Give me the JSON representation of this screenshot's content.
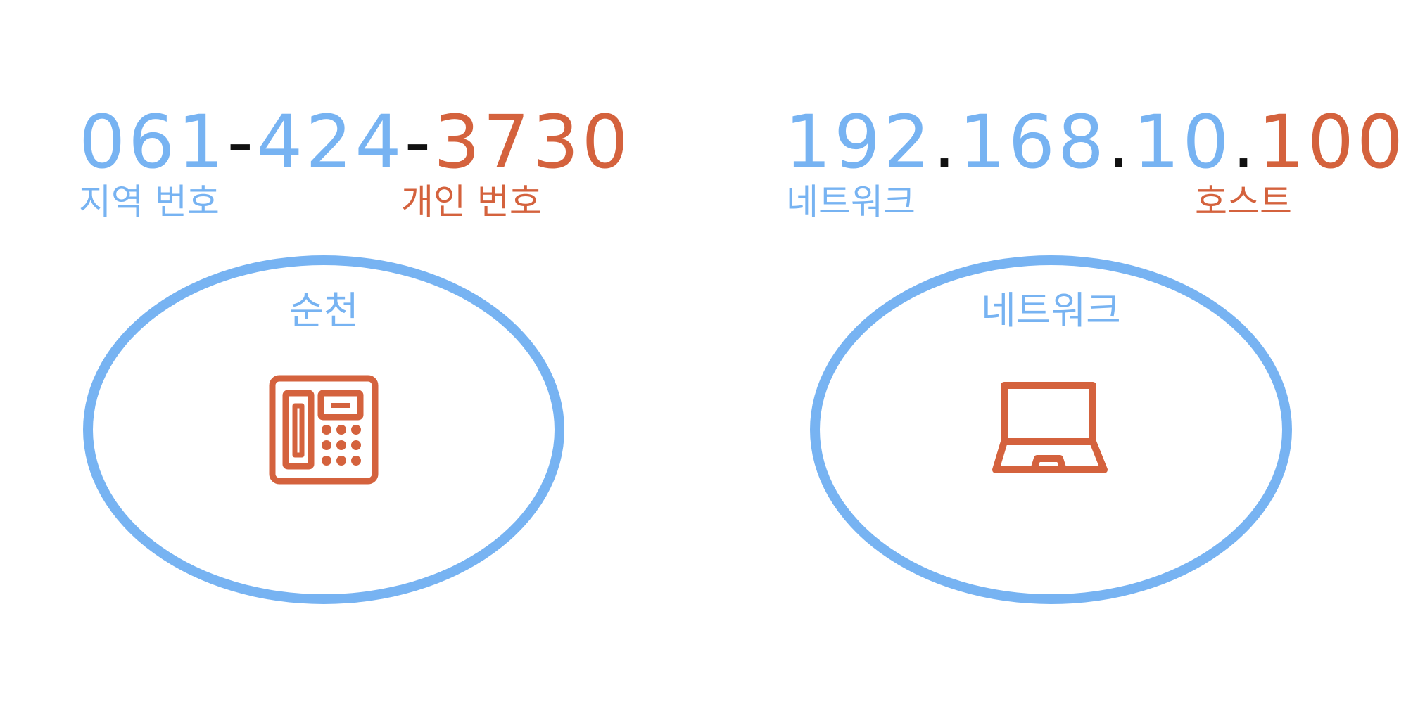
{
  "colors": {
    "network": "#77b3f2",
    "host": "#d4623d",
    "separator": "#111111"
  },
  "phone": {
    "number": {
      "area_code": "061",
      "sep1": "-",
      "exchange": "424",
      "sep2": "-",
      "subscriber": "3730"
    },
    "labels": {
      "network": "지역 번호",
      "host": "개인 번호"
    },
    "group_label": "순천",
    "device_icon": "telephone-icon"
  },
  "ip": {
    "address": {
      "octet1": "192",
      "dot1": ".",
      "octet2": "168",
      "dot2": ".",
      "octet3": "10",
      "dot3": ".",
      "octet4": "100"
    },
    "labels": {
      "network": "네트워크",
      "host": "호스트"
    },
    "group_label": "네트워크",
    "device_icon": "laptop-icon"
  }
}
